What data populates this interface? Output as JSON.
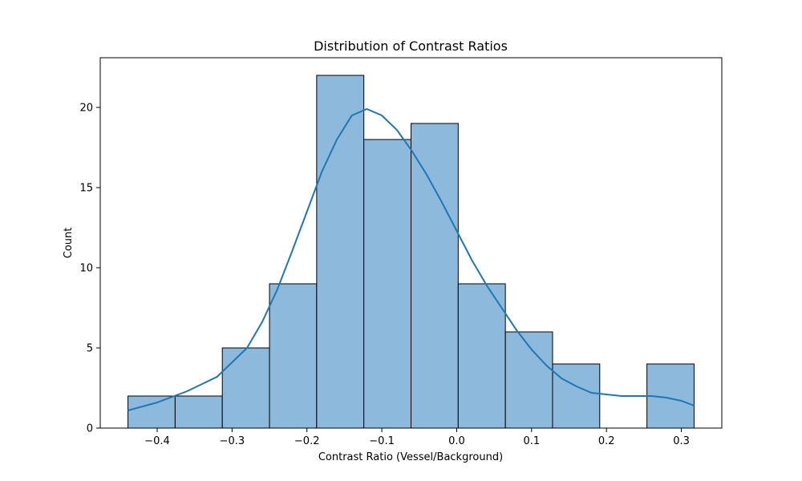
{
  "chart_data": {
    "type": "bar",
    "title": "Distribution of Contrast Ratios",
    "xlabel": "Contrast Ratio (Vessel/Background)",
    "ylabel": "Count",
    "xlim": [
      -0.476,
      0.354
    ],
    "ylim": [
      0,
      23.1
    ],
    "x_ticks": [
      -0.4,
      -0.3,
      -0.2,
      -0.1,
      0.0,
      0.1,
      0.2,
      0.3
    ],
    "x_tick_labels": [
      "−0.4",
      "−0.3",
      "−0.2",
      "−0.1",
      "0.0",
      "0.1",
      "0.2",
      "0.3"
    ],
    "y_ticks": [
      0,
      5,
      10,
      15,
      20
    ],
    "y_tick_labels": [
      "0",
      "5",
      "10",
      "15",
      "20"
    ],
    "grid": false,
    "legend": "none",
    "bar_color": "#8db9dc",
    "bar_edge_color": "#000000",
    "kde_color": "#1f77b4",
    "bins": [
      {
        "start": -0.439,
        "end": -0.376,
        "count": 2
      },
      {
        "start": -0.376,
        "end": -0.313,
        "count": 2
      },
      {
        "start": -0.313,
        "end": -0.25,
        "count": 5
      },
      {
        "start": -0.25,
        "end": -0.187,
        "count": 9
      },
      {
        "start": -0.187,
        "end": -0.124,
        "count": 22
      },
      {
        "start": -0.124,
        "end": -0.061,
        "count": 18
      },
      {
        "start": -0.061,
        "end": 0.002,
        "count": 19
      },
      {
        "start": 0.002,
        "end": 0.065,
        "count": 9
      },
      {
        "start": 0.065,
        "end": 0.128,
        "count": 6
      },
      {
        "start": 0.128,
        "end": 0.191,
        "count": 4
      },
      {
        "start": 0.191,
        "end": 0.254,
        "count": 0
      },
      {
        "start": 0.254,
        "end": 0.317,
        "count": 4
      }
    ],
    "kde": {
      "x": [
        -0.439,
        -0.4,
        -0.36,
        -0.32,
        -0.28,
        -0.26,
        -0.24,
        -0.22,
        -0.2,
        -0.18,
        -0.16,
        -0.14,
        -0.12,
        -0.1,
        -0.08,
        -0.06,
        -0.04,
        -0.02,
        0.0,
        0.02,
        0.04,
        0.06,
        0.08,
        0.1,
        0.12,
        0.14,
        0.16,
        0.18,
        0.2,
        0.22,
        0.24,
        0.26,
        0.28,
        0.3,
        0.317
      ],
      "y": [
        1.1,
        1.6,
        2.3,
        3.2,
        5.0,
        6.6,
        8.6,
        11.0,
        13.5,
        16.0,
        18.0,
        19.5,
        19.9,
        19.5,
        18.6,
        17.3,
        15.8,
        14.1,
        12.3,
        10.5,
        8.9,
        7.5,
        6.1,
        4.9,
        3.9,
        3.1,
        2.6,
        2.2,
        2.1,
        2.0,
        2.0,
        2.0,
        1.9,
        1.7,
        1.4
      ]
    }
  }
}
